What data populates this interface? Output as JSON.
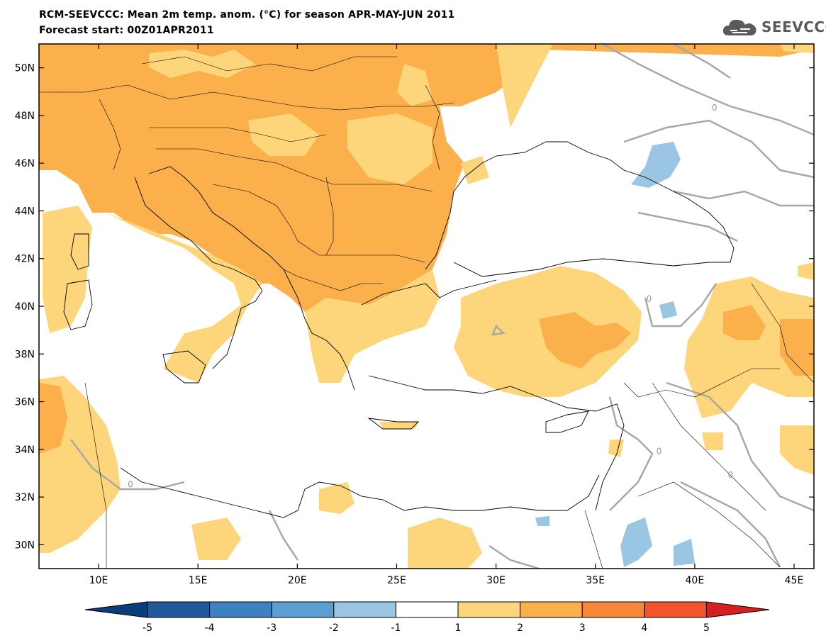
{
  "header": {
    "title_line1": "RCM-SEEVCCC: Mean 2m temp. anom. (°C) for season APR-MAY-JUN 2011",
    "title_line2": "Forecast start: 00Z01APR2011"
  },
  "logo": {
    "text": "SEEVCCC",
    "icon": "cloud-icon"
  },
  "map": {
    "x_ticks": [
      "10E",
      "15E",
      "20E",
      "25E",
      "30E",
      "35E",
      "40E",
      "45E"
    ],
    "x_tick_values": [
      10,
      15,
      20,
      25,
      30,
      35,
      40,
      45
    ],
    "y_ticks": [
      "50N",
      "48N",
      "46N",
      "44N",
      "42N",
      "40N",
      "38N",
      "36N",
      "34N",
      "32N",
      "30N"
    ],
    "y_tick_values": [
      50,
      48,
      46,
      44,
      42,
      40,
      38,
      36,
      34,
      32,
      30
    ],
    "contour_label": "0"
  },
  "colorbar": {
    "labels": [
      "-5",
      "-4",
      "-3",
      "-2",
      "-1",
      "1",
      "2",
      "3",
      "4",
      "5"
    ],
    "colors": [
      "#215a9b",
      "#3d82c0",
      "#5a9ed2",
      "#9ac6e4",
      "#ffffff",
      "#fdd57a",
      "#fbb04c",
      "#f8873a",
      "#f4532c"
    ],
    "under_color": "#0b3d7a",
    "over_color": "#d42020"
  }
}
